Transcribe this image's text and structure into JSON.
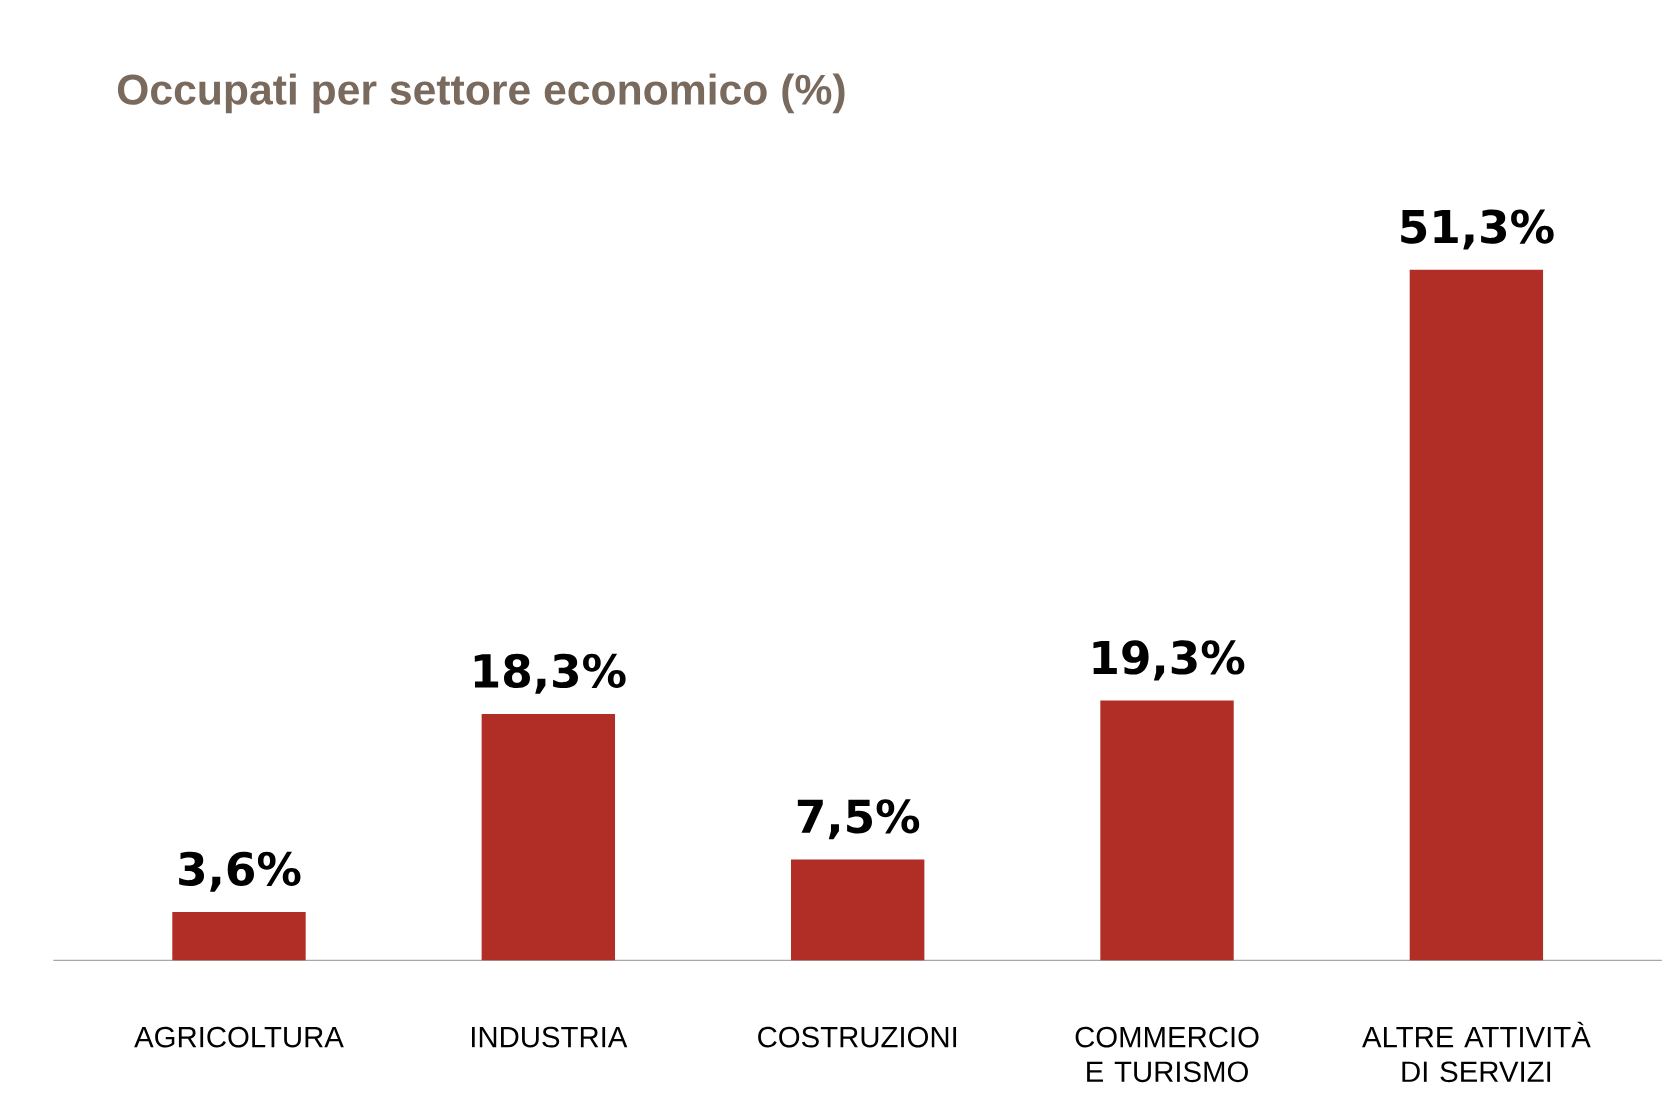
{
  "chart_data": {
    "type": "bar",
    "title": "Occupati per settore economico (%)",
    "categories": [
      "AGRICOLTURA",
      "INDUSTRIA",
      "COSTRUZIONI",
      "COMMERCIO E TURISMO",
      "ALTRE ATTIVITÀ DI SERVIZI"
    ],
    "values": [
      3.6,
      18.3,
      7.5,
      19.3,
      51.3
    ],
    "value_labels": [
      "3,6%",
      "18,3%",
      "7,5%",
      "19,3%",
      "51,3%"
    ],
    "color": "#b02e26"
  }
}
